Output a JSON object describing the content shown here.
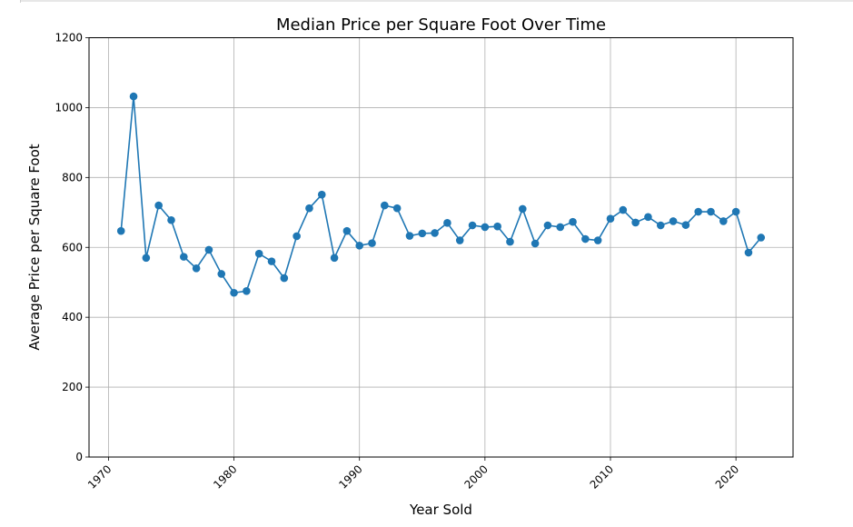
{
  "chart_data": {
    "type": "line",
    "title": "Median Price per Square Foot Over Time",
    "xlabel": "Year Sold",
    "ylabel": "Average Price per Square Foot",
    "xlim": [
      1968.45,
      2024.55
    ],
    "ylim": [
      0,
      1200
    ],
    "xticks": [
      1970,
      1980,
      1990,
      2000,
      2010,
      2020
    ],
    "xtick_labels": [
      "1970",
      "1980",
      "1990",
      "2000",
      "2010",
      "2020"
    ],
    "yticks": [
      0,
      200,
      400,
      600,
      800,
      1000,
      1200
    ],
    "ytick_labels": [
      "0",
      "200",
      "400",
      "600",
      "800",
      "1000",
      "1200"
    ],
    "grid": true,
    "marker": "circle",
    "color": "#1f77b4",
    "series": [
      {
        "x": [
          1971,
          1972,
          1973,
          1974,
          1975,
          1976,
          1977,
          1978,
          1979,
          1980,
          1981,
          1982,
          1983,
          1984,
          1985,
          1986,
          1987,
          1988,
          1989,
          1990,
          1991,
          1992,
          1993,
          1994,
          1995,
          1996,
          1997,
          1998,
          1999,
          2000,
          2001,
          2002,
          2003,
          2004,
          2005,
          2006,
          2007,
          2008,
          2009,
          2010,
          2011,
          2012,
          2013,
          2014,
          2015,
          2016,
          2017,
          2018,
          2019,
          2020,
          2021,
          2022
        ],
        "values": [
          647,
          1032,
          570,
          720,
          678,
          573,
          540,
          593,
          524,
          470,
          475,
          582,
          560,
          512,
          632,
          712,
          751,
          570,
          647,
          605,
          612,
          720,
          712,
          633,
          640,
          641,
          670,
          620,
          663,
          658,
          660,
          616,
          710,
          611,
          663,
          658,
          673,
          624,
          620,
          682,
          707,
          671,
          687,
          663,
          675,
          664,
          702,
          702,
          675,
          702,
          585,
          628
        ]
      }
    ]
  }
}
